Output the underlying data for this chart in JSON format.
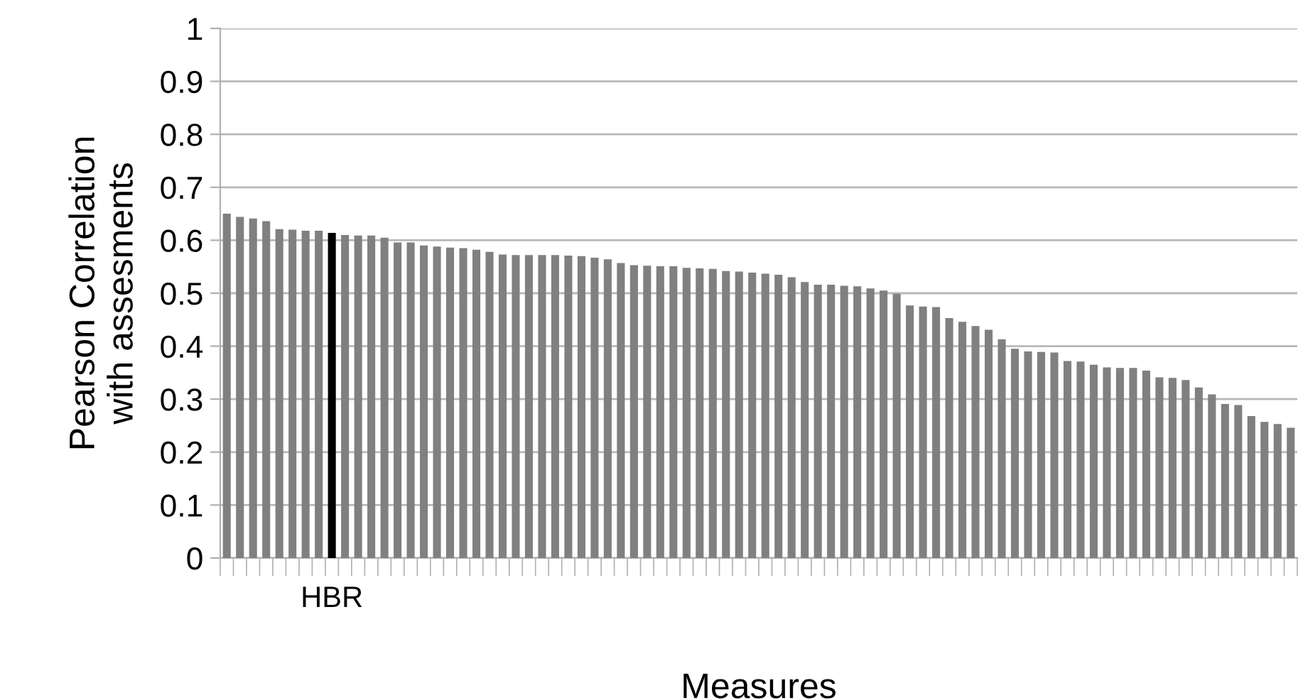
{
  "chart_data": {
    "type": "bar",
    "xlabel": "Measures",
    "ylabel": "Pearson Correlation\nwith assesments",
    "categories": [
      null,
      null,
      null,
      null,
      null,
      null,
      null,
      null,
      "HBR",
      null,
      null,
      null,
      null,
      null,
      null,
      null,
      null,
      null,
      null,
      null,
      null,
      null,
      null,
      null,
      null,
      null,
      null,
      null,
      null,
      null,
      null,
      null,
      null,
      null,
      null,
      null,
      null,
      null,
      null,
      null,
      null,
      null,
      null,
      null,
      null,
      null,
      null,
      null,
      null,
      null,
      null,
      null,
      null,
      null,
      null,
      null,
      null,
      null,
      null,
      null,
      null,
      null,
      null,
      null,
      null,
      null,
      null,
      null,
      null,
      null,
      null,
      null,
      null,
      null,
      null,
      null,
      null,
      null,
      null,
      null,
      null,
      null
    ],
    "values": [
      0.65,
      0.644,
      0.641,
      0.636,
      0.621,
      0.62,
      0.618,
      0.618,
      0.614,
      0.61,
      0.609,
      0.609,
      0.605,
      0.596,
      0.596,
      0.59,
      0.588,
      0.586,
      0.585,
      0.582,
      0.578,
      0.573,
      0.572,
      0.572,
      0.572,
      0.572,
      0.571,
      0.57,
      0.567,
      0.564,
      0.557,
      0.553,
      0.552,
      0.551,
      0.551,
      0.548,
      0.547,
      0.546,
      0.542,
      0.541,
      0.539,
      0.537,
      0.535,
      0.53,
      0.521,
      0.516,
      0.516,
      0.514,
      0.513,
      0.509,
      0.505,
      0.499,
      0.477,
      0.475,
      0.474,
      0.453,
      0.446,
      0.438,
      0.431,
      0.413,
      0.395,
      0.39,
      0.389,
      0.388,
      0.372,
      0.371,
      0.365,
      0.36,
      0.359,
      0.359,
      0.354,
      0.341,
      0.34,
      0.336,
      0.322,
      0.309,
      0.291,
      0.289,
      0.268,
      0.257,
      0.253,
      0.246
    ],
    "colors": [
      "#808080",
      "#808080",
      "#808080",
      "#808080",
      "#808080",
      "#808080",
      "#808080",
      "#808080",
      "#000000",
      "#808080",
      "#808080",
      "#808080",
      "#808080",
      "#808080",
      "#808080",
      "#808080",
      "#808080",
      "#808080",
      "#808080",
      "#808080",
      "#808080",
      "#808080",
      "#808080",
      "#808080",
      "#808080",
      "#808080",
      "#808080",
      "#808080",
      "#808080",
      "#808080",
      "#808080",
      "#808080",
      "#808080",
      "#808080",
      "#808080",
      "#808080",
      "#808080",
      "#808080",
      "#808080",
      "#808080",
      "#808080",
      "#808080",
      "#808080",
      "#808080",
      "#808080",
      "#808080",
      "#808080",
      "#808080",
      "#808080",
      "#808080",
      "#808080",
      "#808080",
      "#808080",
      "#808080",
      "#808080",
      "#808080",
      "#808080",
      "#808080",
      "#808080",
      "#808080",
      "#808080",
      "#808080",
      "#808080",
      "#808080",
      "#808080",
      "#808080",
      "#808080",
      "#808080",
      "#808080",
      "#808080",
      "#808080",
      "#808080",
      "#808080",
      "#808080",
      "#808080",
      "#808080",
      "#808080",
      "#808080",
      "#808080",
      "#808080",
      "#808080",
      "#808080"
    ],
    "ylim": [
      0,
      1
    ],
    "yticks": [
      0,
      0.1,
      0.2,
      0.3,
      0.4,
      0.5,
      0.6,
      0.7,
      0.8,
      0.9,
      1
    ],
    "grid": "y",
    "legend": false
  }
}
